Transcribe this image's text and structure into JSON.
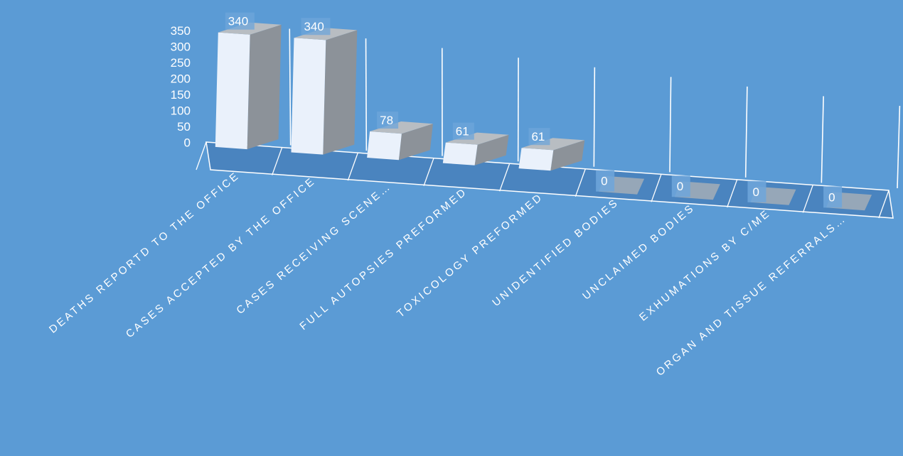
{
  "chart_data": {
    "type": "bar",
    "categories": [
      "DEATHS REPORTD TO THE OFFICE",
      "CASES ACCEPTED BY THE OFFICE",
      "CASES RECEIVING SCENE…",
      "FULL AUTOPSIES PREFORMED",
      "TOXICOLOGY PREFORMED",
      "UNIDENTIFIED BODIES",
      "UNCLAIMED BODIES",
      "EXHUMATIONS BY C/ME",
      "ORGAN AND TISSUE REFERRALS…"
    ],
    "values": [
      340,
      340,
      78,
      61,
      61,
      0,
      0,
      0,
      0
    ],
    "data_labels": [
      "340",
      "340",
      "78",
      "61",
      "61",
      "0",
      "0",
      "0",
      "0"
    ],
    "yticks": [
      "0",
      "50",
      "100",
      "150",
      "200",
      "250",
      "300",
      "350"
    ],
    "ylim": [
      0,
      350
    ],
    "title": "",
    "xlabel": "",
    "ylabel": "",
    "grid": true,
    "legend": "none",
    "colors": {
      "background": "#5b9bd5",
      "bar_front": "#eaf1fb",
      "bar_side": "#8c9299",
      "bar_top": "#b8bdc2",
      "floor": "#4a84bf",
      "zero_block": "#a9b0b7",
      "label_box": "#6ea6da",
      "text": "#ffffff"
    }
  }
}
